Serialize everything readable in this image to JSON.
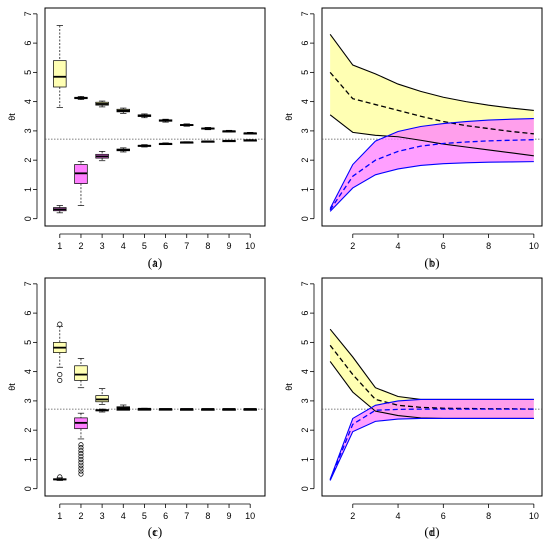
{
  "figure": {
    "background": "#ffffff"
  },
  "colors": {
    "upper_fill": "#ffffb3",
    "lower_fill": "#ff7fff",
    "overlap_fill": "#ff8cb4",
    "upper_line": "#000000",
    "lower_line": "#0000ff",
    "reference_line": "#555555"
  },
  "chart_data": [
    {
      "id": "a",
      "caption": "(a)",
      "type": "boxplot",
      "xlabel": "t",
      "ylabel": "θt",
      "xlim": [
        0.3,
        10.7
      ],
      "ylim": [
        -0.25,
        7.2
      ],
      "xticks": [
        1,
        2,
        3,
        4,
        5,
        6,
        7,
        8,
        9,
        10
      ],
      "yticks": [
        0,
        1,
        2,
        3,
        4,
        5,
        6,
        7
      ],
      "reference_y": 2.72,
      "series": [
        {
          "color_key": "upper_fill",
          "boxes": [
            {
              "x": 1,
              "whislo": 3.8,
              "q1": 4.5,
              "med": 4.85,
              "q3": 5.4,
              "whishi": 6.6,
              "outliers": []
            },
            {
              "x": 2,
              "whislo": 4.07,
              "q1": 4.1,
              "med": 4.12,
              "q3": 4.15,
              "whishi": 4.18,
              "outliers": []
            },
            {
              "x": 3,
              "whislo": 3.82,
              "q1": 3.88,
              "med": 3.92,
              "q3": 3.98,
              "whishi": 4.02,
              "outliers": []
            },
            {
              "x": 4,
              "whislo": 3.6,
              "q1": 3.65,
              "med": 3.69,
              "q3": 3.74,
              "whishi": 3.78,
              "outliers": []
            },
            {
              "x": 5,
              "whislo": 3.45,
              "q1": 3.49,
              "med": 3.52,
              "q3": 3.55,
              "whishi": 3.58,
              "outliers": []
            },
            {
              "x": 6,
              "whislo": 3.3,
              "q1": 3.33,
              "med": 3.35,
              "q3": 3.38,
              "whishi": 3.4,
              "outliers": []
            },
            {
              "x": 7,
              "whislo": 3.16,
              "q1": 3.18,
              "med": 3.2,
              "q3": 3.22,
              "whishi": 3.24,
              "outliers": []
            },
            {
              "x": 8,
              "whislo": 3.04,
              "q1": 3.06,
              "med": 3.08,
              "q3": 3.1,
              "whishi": 3.12,
              "outliers": []
            },
            {
              "x": 9,
              "whislo": 2.96,
              "q1": 2.98,
              "med": 2.99,
              "q3": 3.0,
              "whishi": 3.02,
              "outliers": []
            },
            {
              "x": 10,
              "whislo": 2.89,
              "q1": 2.91,
              "med": 2.92,
              "q3": 2.93,
              "whishi": 2.95,
              "outliers": []
            }
          ]
        },
        {
          "color_key": "lower_fill",
          "boxes": [
            {
              "x": 1,
              "whislo": 0.2,
              "q1": 0.27,
              "med": 0.32,
              "q3": 0.38,
              "whishi": 0.45,
              "outliers": []
            },
            {
              "x": 2,
              "whislo": 0.45,
              "q1": 1.2,
              "med": 1.55,
              "q3": 1.85,
              "whishi": 1.95,
              "outliers": []
            },
            {
              "x": 3,
              "whislo": 1.98,
              "q1": 2.07,
              "med": 2.13,
              "q3": 2.2,
              "whishi": 2.3,
              "outliers": []
            },
            {
              "x": 4,
              "whislo": 2.28,
              "q1": 2.32,
              "med": 2.35,
              "q3": 2.38,
              "whishi": 2.42,
              "outliers": []
            },
            {
              "x": 5,
              "whislo": 2.45,
              "q1": 2.47,
              "med": 2.49,
              "q3": 2.51,
              "whishi": 2.53,
              "outliers": []
            },
            {
              "x": 6,
              "whislo": 2.53,
              "q1": 2.55,
              "med": 2.56,
              "q3": 2.57,
              "whishi": 2.59,
              "outliers": []
            },
            {
              "x": 7,
              "whislo": 2.58,
              "q1": 2.6,
              "med": 2.61,
              "q3": 2.62,
              "whishi": 2.63,
              "outliers": []
            },
            {
              "x": 8,
              "whislo": 2.62,
              "q1": 2.63,
              "med": 2.64,
              "q3": 2.65,
              "whishi": 2.66,
              "outliers": []
            },
            {
              "x": 9,
              "whislo": 2.64,
              "q1": 2.65,
              "med": 2.66,
              "q3": 2.67,
              "whishi": 2.68,
              "outliers": []
            },
            {
              "x": 10,
              "whislo": 2.66,
              "q1": 2.67,
              "med": 2.68,
              "q3": 2.69,
              "whishi": 2.7,
              "outliers": []
            }
          ]
        }
      ]
    },
    {
      "id": "b",
      "caption": "(b)",
      "type": "area",
      "xlabel": "t",
      "ylabel": "θt",
      "xlim": [
        0.64,
        10.36
      ],
      "ylim": [
        -0.25,
        7.2
      ],
      "xticks": [
        2,
        4,
        6,
        8,
        10
      ],
      "yticks": [
        0,
        1,
        2,
        3,
        4,
        5,
        6,
        7
      ],
      "reference_y": 2.72,
      "x": [
        1,
        2,
        3,
        4,
        5,
        6,
        7,
        8,
        9,
        10
      ],
      "bands": [
        {
          "color_key": "upper_fill",
          "line_key": "upper_line",
          "upper": [
            6.3,
            5.25,
            4.95,
            4.6,
            4.35,
            4.15,
            4.0,
            3.88,
            3.78,
            3.7
          ],
          "mean": [
            5.0,
            4.1,
            3.9,
            3.7,
            3.5,
            3.32,
            3.18,
            3.08,
            2.98,
            2.9
          ],
          "lower": [
            3.55,
            2.95,
            2.85,
            2.8,
            2.68,
            2.55,
            2.45,
            2.35,
            2.25,
            2.15
          ]
        },
        {
          "color_key": "lower_fill",
          "line_key": "lower_line",
          "upper": [
            0.35,
            1.85,
            2.65,
            2.98,
            3.15,
            3.25,
            3.32,
            3.37,
            3.4,
            3.42
          ],
          "mean": [
            0.3,
            1.45,
            2.0,
            2.3,
            2.48,
            2.57,
            2.62,
            2.66,
            2.68,
            2.7
          ],
          "lower": [
            0.25,
            1.05,
            1.5,
            1.7,
            1.82,
            1.88,
            1.91,
            1.93,
            1.94,
            1.95
          ]
        }
      ]
    },
    {
      "id": "c",
      "caption": "(c)",
      "type": "boxplot",
      "xlabel": "t",
      "ylabel": "θt",
      "xlim": [
        0.3,
        10.7
      ],
      "ylim": [
        -0.25,
        7.2
      ],
      "xticks": [
        1,
        2,
        3,
        4,
        5,
        6,
        7,
        8,
        9,
        10
      ],
      "yticks": [
        0,
        1,
        2,
        3,
        4,
        5,
        6,
        7
      ],
      "reference_y": 2.72,
      "series": [
        {
          "color_key": "upper_fill",
          "boxes": [
            {
              "x": 1,
              "whislo": 4.15,
              "q1": 4.65,
              "med": 4.82,
              "q3": 5.0,
              "whishi": 5.55,
              "outliers": [
                3.7,
                3.9,
                5.62
              ]
            },
            {
              "x": 2,
              "whislo": 3.45,
              "q1": 3.7,
              "med": 3.9,
              "q3": 4.2,
              "whishi": 4.45,
              "outliers": []
            },
            {
              "x": 3,
              "whislo": 2.88,
              "q1": 2.97,
              "med": 3.05,
              "q3": 3.18,
              "whishi": 3.42,
              "outliers": []
            },
            {
              "x": 4,
              "whislo": 2.72,
              "q1": 2.74,
              "med": 2.76,
              "q3": 2.8,
              "whishi": 2.86,
              "outliers": []
            },
            {
              "x": 5,
              "whislo": 2.72,
              "q1": 2.72,
              "med": 2.73,
              "q3": 2.74,
              "whishi": 2.75,
              "outliers": []
            },
            {
              "x": 6,
              "whislo": 2.72,
              "q1": 2.72,
              "med": 2.72,
              "q3": 2.73,
              "whishi": 2.73,
              "outliers": []
            },
            {
              "x": 7,
              "whislo": 2.72,
              "q1": 2.72,
              "med": 2.72,
              "q3": 2.72,
              "whishi": 2.73,
              "outliers": []
            },
            {
              "x": 8,
              "whislo": 2.72,
              "q1": 2.72,
              "med": 2.72,
              "q3": 2.72,
              "whishi": 2.72,
              "outliers": []
            },
            {
              "x": 9,
              "whislo": 2.72,
              "q1": 2.72,
              "med": 2.72,
              "q3": 2.72,
              "whishi": 2.72,
              "outliers": []
            },
            {
              "x": 10,
              "whislo": 2.72,
              "q1": 2.72,
              "med": 2.72,
              "q3": 2.72,
              "whishi": 2.72,
              "outliers": []
            }
          ]
        },
        {
          "color_key": "lower_fill",
          "boxes": [
            {
              "x": 1,
              "whislo": 0.28,
              "q1": 0.3,
              "med": 0.32,
              "q3": 0.34,
              "whishi": 0.37,
              "outliers": [
                0.4
              ]
            },
            {
              "x": 2,
              "whislo": 1.7,
              "q1": 2.05,
              "med": 2.25,
              "q3": 2.42,
              "whishi": 2.58,
              "outliers": [
                1.5,
                1.4,
                1.3,
                1.2,
                1.1,
                1.0,
                0.9,
                0.8,
                0.7,
                0.6,
                0.5
              ]
            },
            {
              "x": 3,
              "whislo": 2.62,
              "q1": 2.66,
              "med": 2.68,
              "q3": 2.7,
              "whishi": 2.72,
              "outliers": []
            },
            {
              "x": 4,
              "whislo": 2.69,
              "q1": 2.7,
              "med": 2.71,
              "q3": 2.72,
              "whishi": 2.72,
              "outliers": []
            },
            {
              "x": 5,
              "whislo": 2.71,
              "q1": 2.71,
              "med": 2.72,
              "q3": 2.72,
              "whishi": 2.72,
              "outliers": []
            },
            {
              "x": 6,
              "whislo": 2.71,
              "q1": 2.72,
              "med": 2.72,
              "q3": 2.72,
              "whishi": 2.72,
              "outliers": []
            },
            {
              "x": 7,
              "whislo": 2.72,
              "q1": 2.72,
              "med": 2.72,
              "q3": 2.72,
              "whishi": 2.72,
              "outliers": []
            },
            {
              "x": 8,
              "whislo": 2.72,
              "q1": 2.72,
              "med": 2.72,
              "q3": 2.72,
              "whishi": 2.72,
              "outliers": []
            },
            {
              "x": 9,
              "whislo": 2.72,
              "q1": 2.72,
              "med": 2.72,
              "q3": 2.72,
              "whishi": 2.72,
              "outliers": []
            },
            {
              "x": 10,
              "whislo": 2.72,
              "q1": 2.72,
              "med": 2.72,
              "q3": 2.72,
              "whishi": 2.72,
              "outliers": []
            }
          ]
        }
      ]
    },
    {
      "id": "d",
      "caption": "(d)",
      "type": "area",
      "xlabel": "t",
      "ylabel": "θt",
      "xlim": [
        0.64,
        10.36
      ],
      "ylim": [
        -0.25,
        7.2
      ],
      "xticks": [
        2,
        4,
        6,
        8,
        10
      ],
      "yticks": [
        0,
        1,
        2,
        3,
        4,
        5,
        6,
        7
      ],
      "reference_y": 2.72,
      "x": [
        1,
        2,
        3,
        4,
        5,
        6,
        7,
        8,
        9,
        10
      ],
      "bands": [
        {
          "color_key": "upper_fill",
          "line_key": "upper_line",
          "upper": [
            5.45,
            4.5,
            3.45,
            3.15,
            3.05,
            3.05,
            3.05,
            3.05,
            3.05,
            3.05
          ],
          "mean": [
            4.9,
            3.9,
            3.05,
            2.85,
            2.78,
            2.75,
            2.74,
            2.73,
            2.73,
            2.72
          ],
          "lower": [
            4.35,
            3.3,
            2.65,
            2.5,
            2.42,
            2.4,
            2.4,
            2.4,
            2.4,
            2.4
          ]
        },
        {
          "color_key": "lower_fill",
          "line_key": "lower_line",
          "upper": [
            0.32,
            2.4,
            2.85,
            3.0,
            3.05,
            3.05,
            3.05,
            3.05,
            3.05,
            3.05
          ],
          "mean": [
            0.3,
            2.2,
            2.68,
            2.71,
            2.72,
            2.72,
            2.72,
            2.72,
            2.72,
            2.72
          ],
          "lower": [
            0.28,
            1.95,
            2.3,
            2.38,
            2.4,
            2.4,
            2.4,
            2.4,
            2.4,
            2.4
          ]
        }
      ]
    }
  ]
}
